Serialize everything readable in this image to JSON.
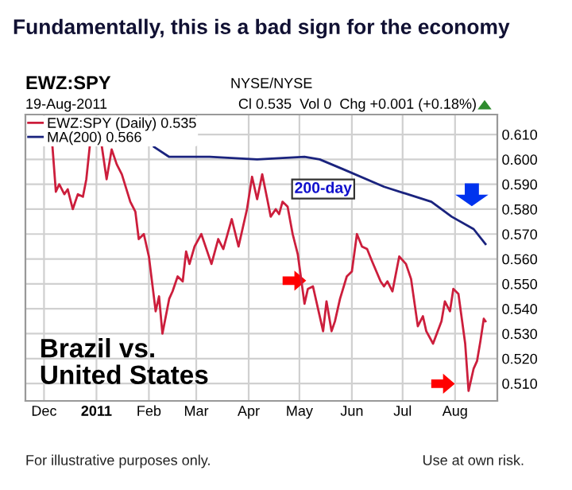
{
  "chart_data": {
    "type": "line",
    "title": "Fundamentally, this is a bad sign for the economy",
    "annotations": [
      "EWZ:SPY",
      "NYSE/NYSE",
      "19-Aug-2011",
      "Cl 0.535  Vol 0  Chg +0.001 (+0.18%)",
      "200-day",
      "Brazil vs.\nUnited States",
      "For illustrative purposes only.",
      "Use at own risk."
    ],
    "xlim": [
      "2010-11-20",
      "2011-08-26"
    ],
    "xticks": [
      {
        "value": "2010-12-01",
        "label": "Dec"
      },
      {
        "value": "2011-01-01",
        "label": "2011"
      },
      {
        "value": "2011-02-01",
        "label": "Feb"
      },
      {
        "value": "2011-03-01",
        "label": "Mar"
      },
      {
        "value": "2011-04-01",
        "label": "Apr"
      },
      {
        "value": "2011-05-01",
        "label": "May"
      },
      {
        "value": "2011-06-01",
        "label": "Jun"
      },
      {
        "value": "2011-07-01",
        "label": "Jul"
      },
      {
        "value": "2011-08-01",
        "label": "Aug"
      }
    ],
    "ylim": [
      0.503,
      0.618
    ],
    "yticks": [
      {
        "value": 0.51,
        "label": "0.510"
      },
      {
        "value": 0.52,
        "label": "0.520"
      },
      {
        "value": 0.53,
        "label": "0.530"
      },
      {
        "value": 0.54,
        "label": "0.540"
      },
      {
        "value": 0.55,
        "label": "0.550"
      },
      {
        "value": 0.56,
        "label": "0.560"
      },
      {
        "value": 0.57,
        "label": "0.570"
      },
      {
        "value": 0.58,
        "label": "0.580"
      },
      {
        "value": 0.59,
        "label": "0.590"
      },
      {
        "value": 0.6,
        "label": "0.600"
      },
      {
        "value": 0.61,
        "label": "0.610"
      }
    ],
    "grid": true,
    "legend": "top left",
    "series": [
      {
        "name": "EWZ:SPY (Daily) 0.535",
        "color": "#cc1e3c",
        "x": [
          "2010-12-06",
          "2010-12-08",
          "2010-12-10",
          "2010-12-13",
          "2010-12-15",
          "2010-12-18",
          "2010-12-21",
          "2010-12-24",
          "2010-12-26",
          "2010-12-28",
          "2010-12-29",
          "2011-01-04",
          "2011-01-07",
          "2011-01-10",
          "2011-01-13",
          "2011-01-16",
          "2011-01-21",
          "2011-01-24",
          "2011-01-26",
          "2011-01-29",
          "2011-02-01",
          "2011-02-05",
          "2011-02-07",
          "2011-02-09",
          "2011-02-13",
          "2011-02-15",
          "2011-02-18",
          "2011-02-21",
          "2011-02-23",
          "2011-02-25",
          "2011-02-28",
          "2011-03-04",
          "2011-03-10",
          "2011-03-14",
          "2011-03-17",
          "2011-03-22",
          "2011-03-26",
          "2011-03-31",
          "2011-04-03",
          "2011-04-06",
          "2011-04-09",
          "2011-04-12",
          "2011-04-14",
          "2011-04-17",
          "2011-04-19",
          "2011-04-21",
          "2011-04-24",
          "2011-04-27",
          "2011-04-30",
          "2011-05-04",
          "2011-05-06",
          "2011-05-09",
          "2011-05-15",
          "2011-05-17",
          "2011-05-20",
          "2011-05-22",
          "2011-05-25",
          "2011-05-29",
          "2011-06-01",
          "2011-06-04",
          "2011-06-07",
          "2011-06-10",
          "2011-06-13",
          "2011-06-18",
          "2011-06-20",
          "2011-06-22",
          "2011-06-25",
          "2011-06-29",
          "2011-07-03",
          "2011-07-06",
          "2011-07-10",
          "2011-07-13",
          "2011-07-15",
          "2011-07-19",
          "2011-07-24",
          "2011-07-26",
          "2011-07-29",
          "2011-07-31",
          "2011-08-03",
          "2011-08-07",
          "2011-08-09",
          "2011-08-12",
          "2011-08-14",
          "2011-08-16",
          "2011-08-18",
          "2011-08-19"
        ],
        "values": [
          0.605,
          0.587,
          0.59,
          0.586,
          0.588,
          0.58,
          0.586,
          0.585,
          0.592,
          0.605,
          null,
          0.606,
          0.592,
          0.604,
          0.598,
          0.594,
          0.583,
          0.579,
          0.568,
          0.57,
          0.561,
          0.539,
          0.545,
          0.53,
          0.544,
          0.547,
          0.553,
          0.551,
          0.563,
          0.558,
          0.565,
          0.57,
          0.558,
          0.568,
          0.564,
          0.576,
          0.565,
          0.58,
          0.593,
          0.584,
          0.594,
          0.584,
          0.577,
          0.58,
          0.578,
          0.583,
          0.581,
          0.57,
          0.562,
          0.542,
          0.548,
          0.549,
          0.531,
          0.543,
          0.531,
          0.535,
          0.544,
          0.553,
          0.555,
          0.57,
          0.565,
          0.564,
          0.559,
          0.551,
          0.549,
          0.551,
          0.547,
          0.561,
          0.558,
          0.552,
          0.533,
          0.537,
          0.531,
          0.526,
          0.535,
          0.543,
          0.539,
          0.548,
          0.546,
          0.526,
          0.507,
          0.516,
          0.519,
          0.527,
          0.536,
          0.535
        ]
      },
      {
        "name": "MA(200) 0.566",
        "color": "#1a237e",
        "x": [
          "2011-02-04",
          "2011-02-13",
          "2011-03-09",
          "2011-04-06",
          "2011-05-04",
          "2011-05-13",
          "2011-05-27",
          "2011-06-20",
          "2011-07-18",
          "2011-07-30",
          "2011-08-12",
          "2011-08-19"
        ],
        "values": [
          0.605,
          0.601,
          0.601,
          0.6,
          0.601,
          0.6,
          0.596,
          0.589,
          0.583,
          0.577,
          0.572,
          0.566
        ]
      }
    ]
  }
}
